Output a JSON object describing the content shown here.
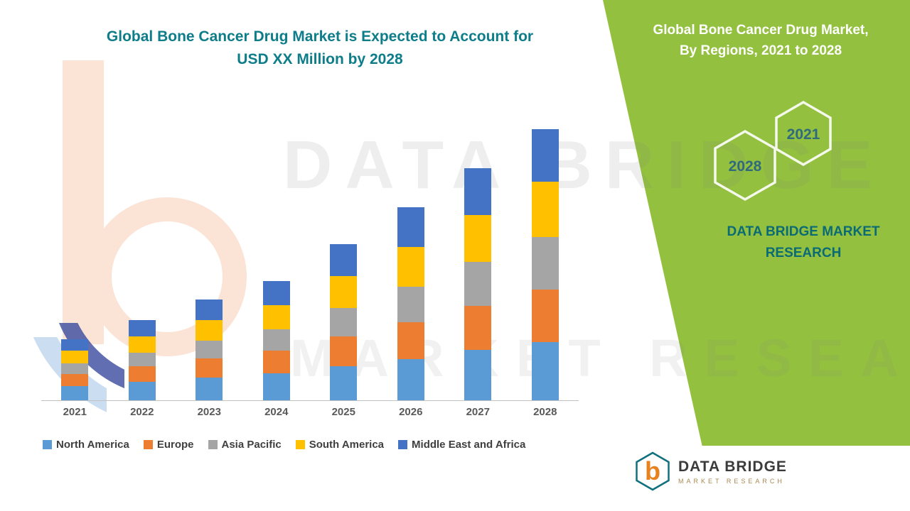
{
  "main_title": {
    "line1": "Global Bone Cancer Drug Market is Expected to Account for",
    "line2": "USD XX Million by 2028"
  },
  "watermark": {
    "line1": "DATA BRIDGE",
    "line2": "MARKET RESEARCH"
  },
  "chart_data": {
    "type": "bar",
    "stacked": true,
    "title": "Global Bone Cancer Drug Market is Expected to Account for USD XX Million by 2028",
    "xlabel": "",
    "ylabel": "",
    "y_axis_labeled": false,
    "units": "relative index (values hidden, chart labeled USD XX Million)",
    "legend_position": "bottom",
    "categories": [
      "2021",
      "2022",
      "2023",
      "2024",
      "2025",
      "2026",
      "2027",
      "2028"
    ],
    "series": [
      {
        "name": "North America",
        "color": "#5B9BD5",
        "values": [
          20,
          26,
          32,
          38,
          48,
          58,
          71,
          82
        ]
      },
      {
        "name": "Europe",
        "color": "#ED7D31",
        "values": [
          17,
          22,
          27,
          32,
          42,
          52,
          62,
          74
        ]
      },
      {
        "name": "Asia Pacific",
        "color": "#A5A5A5",
        "values": [
          15,
          19,
          25,
          30,
          40,
          50,
          62,
          74
        ]
      },
      {
        "name": "South America",
        "color": "#FFC000",
        "values": [
          18,
          23,
          29,
          34,
          45,
          56,
          66,
          78
        ]
      },
      {
        "name": "Middle East and Africa",
        "color": "#4472C4",
        "values": [
          16,
          23,
          29,
          34,
          45,
          56,
          66,
          74
        ]
      }
    ],
    "totals": [
      86,
      113,
      142,
      168,
      220,
      272,
      327,
      382
    ]
  },
  "side_panel": {
    "bg_color": "#93C13F",
    "title_line1": "Global Bone Cancer Drug Market,",
    "title_line2": "By Regions, 2021 to 2028",
    "hexagons": [
      {
        "label": "2028"
      },
      {
        "label": "2021"
      }
    ],
    "brand_line1": "DATA BRIDGE MARKET",
    "brand_line2": "RESEARCH"
  },
  "footer_logo": {
    "monogram": "b",
    "brand": "DATA BRIDGE",
    "sub": "MARKET RESEARCH"
  }
}
